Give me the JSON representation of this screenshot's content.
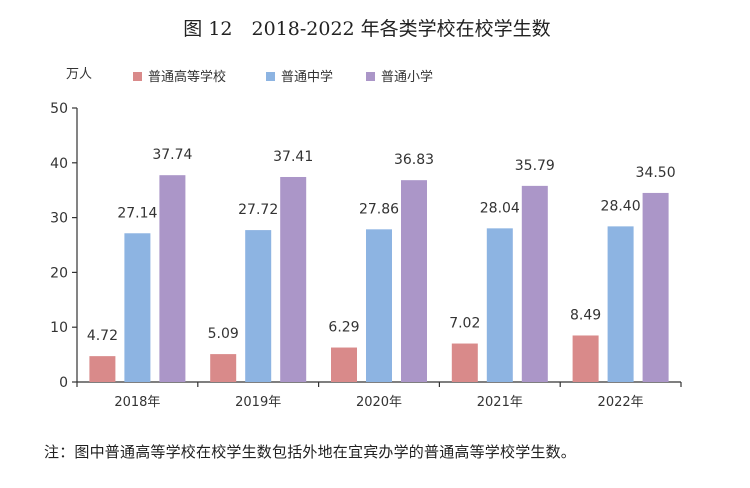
{
  "colors": {
    "background": "#ffffff",
    "axis": "#333333",
    "series": [
      "#d98a8a",
      "#8db4e2",
      "#ab96c8"
    ]
  },
  "chart_data": {
    "type": "bar",
    "title": "图 12　2018-2022 年各类学校在校学生数",
    "ylabel": "万人",
    "xlabel": "",
    "categories": [
      "2018年",
      "2019年",
      "2020年",
      "2021年",
      "2022年"
    ],
    "ylim": [
      0,
      50
    ],
    "yticks": [
      0,
      10,
      20,
      30,
      40,
      50
    ],
    "grid": false,
    "legend_position": "top",
    "series": [
      {
        "name": "普通高等学校",
        "values": [
          4.72,
          5.09,
          6.29,
          7.02,
          8.49
        ],
        "labels": [
          "4.72",
          "5.09",
          "6.29",
          "7.02",
          "8.49"
        ]
      },
      {
        "name": "普通中学",
        "values": [
          27.14,
          27.72,
          27.86,
          28.04,
          28.4
        ],
        "labels": [
          "27.14",
          "27.72",
          "27.86",
          "28.04",
          "28.40"
        ]
      },
      {
        "name": "普通小学",
        "values": [
          37.74,
          37.41,
          36.83,
          35.79,
          34.5
        ],
        "labels": [
          "37.74",
          "37.41",
          "36.83",
          "35.79",
          "34.50"
        ]
      }
    ]
  },
  "note": "注：图中普通高等学校在校学生数包括外地在宜宾办学的普通高等学校学生数。"
}
